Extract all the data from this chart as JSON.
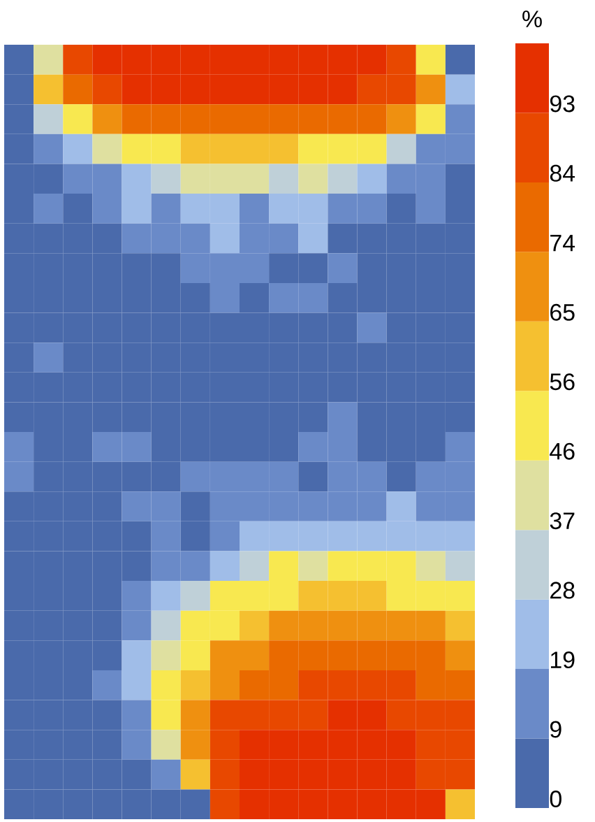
{
  "chart_data": {
    "type": "heatmap",
    "clabel": "%",
    "categories": [
      null,
      null,
      null,
      null,
      null,
      null,
      null,
      null,
      null,
      null,
      null,
      null,
      null,
      null,
      null,
      null
    ],
    "y_categories": [
      null,
      null,
      null,
      null,
      null,
      null,
      null,
      null,
      null,
      null,
      null,
      null,
      null,
      null,
      null,
      null,
      null,
      null,
      null,
      null,
      null,
      null,
      null,
      null,
      null,
      null
    ],
    "clim": [
      0,
      102.3
    ],
    "cticks": [
      {
        "value": 0,
        "label": "0"
      },
      {
        "value": 9.3,
        "label": "9"
      },
      {
        "value": 18.6,
        "label": "19"
      },
      {
        "value": 27.9,
        "label": "28"
      },
      {
        "value": 37.2,
        "label": "37"
      },
      {
        "value": 46.5,
        "label": "46"
      },
      {
        "value": 55.8,
        "label": "56"
      },
      {
        "value": 65.1,
        "label": "65"
      },
      {
        "value": 74.4,
        "label": "74"
      },
      {
        "value": 83.7,
        "label": "84"
      },
      {
        "value": 93,
        "label": "93"
      }
    ],
    "cells": [
      [
        5,
        42,
        88,
        98,
        98,
        98,
        98,
        98,
        98,
        98,
        98,
        98,
        98,
        88,
        51,
        5
      ],
      [
        5,
        60,
        79,
        88,
        98,
        98,
        98,
        98,
        98,
        98,
        98,
        98,
        88,
        88,
        70,
        23
      ],
      [
        5,
        33,
        51,
        70,
        79,
        79,
        79,
        79,
        79,
        79,
        79,
        79,
        79,
        70,
        51,
        14
      ],
      [
        5,
        14,
        23,
        42,
        51,
        51,
        60,
        60,
        60,
        60,
        51,
        51,
        51,
        33,
        14,
        14
      ],
      [
        5,
        5,
        14,
        14,
        23,
        33,
        42,
        42,
        42,
        33,
        42,
        33,
        23,
        14,
        14,
        5
      ],
      [
        5,
        14,
        5,
        14,
        23,
        14,
        23,
        23,
        14,
        23,
        23,
        14,
        14,
        5,
        14,
        5
      ],
      [
        5,
        5,
        5,
        5,
        14,
        14,
        14,
        23,
        14,
        14,
        23,
        5,
        5,
        5,
        5,
        5
      ],
      [
        5,
        5,
        5,
        5,
        5,
        5,
        14,
        14,
        14,
        5,
        5,
        14,
        5,
        5,
        5,
        5
      ],
      [
        5,
        5,
        5,
        5,
        5,
        5,
        5,
        14,
        5,
        14,
        14,
        5,
        5,
        5,
        5,
        5
      ],
      [
        5,
        5,
        5,
        5,
        5,
        5,
        5,
        5,
        5,
        5,
        5,
        5,
        14,
        5,
        5,
        5
      ],
      [
        5,
        14,
        5,
        5,
        5,
        5,
        5,
        5,
        5,
        5,
        5,
        5,
        5,
        5,
        5,
        5
      ],
      [
        5,
        5,
        5,
        5,
        5,
        5,
        5,
        5,
        5,
        5,
        5,
        5,
        5,
        5,
        5,
        5
      ],
      [
        5,
        5,
        5,
        5,
        5,
        5,
        5,
        5,
        5,
        5,
        5,
        14,
        5,
        5,
        5,
        5
      ],
      [
        14,
        5,
        5,
        14,
        14,
        5,
        5,
        5,
        5,
        5,
        14,
        14,
        5,
        5,
        5,
        14
      ],
      [
        14,
        5,
        5,
        5,
        5,
        5,
        14,
        14,
        14,
        14,
        5,
        14,
        14,
        5,
        14,
        14
      ],
      [
        5,
        5,
        5,
        5,
        14,
        14,
        5,
        14,
        14,
        14,
        14,
        14,
        14,
        23,
        14,
        14
      ],
      [
        5,
        5,
        5,
        5,
        5,
        14,
        5,
        14,
        23,
        23,
        23,
        23,
        23,
        23,
        23,
        23
      ],
      [
        5,
        5,
        5,
        5,
        5,
        14,
        14,
        23,
        33,
        51,
        42,
        51,
        51,
        51,
        42,
        33
      ],
      [
        5,
        5,
        5,
        5,
        14,
        23,
        33,
        51,
        51,
        51,
        60,
        60,
        60,
        51,
        51,
        51
      ],
      [
        5,
        5,
        5,
        5,
        14,
        33,
        51,
        51,
        60,
        70,
        70,
        70,
        70,
        70,
        70,
        60
      ],
      [
        5,
        5,
        5,
        5,
        23,
        42,
        51,
        70,
        70,
        79,
        79,
        79,
        79,
        79,
        79,
        70
      ],
      [
        5,
        5,
        5,
        14,
        23,
        51,
        60,
        70,
        79,
        79,
        88,
        88,
        88,
        88,
        79,
        79
      ],
      [
        5,
        5,
        5,
        5,
        14,
        51,
        70,
        88,
        88,
        88,
        88,
        98,
        98,
        88,
        88,
        88
      ],
      [
        5,
        5,
        5,
        5,
        14,
        42,
        70,
        88,
        98,
        98,
        98,
        98,
        98,
        98,
        88,
        88
      ],
      [
        5,
        5,
        5,
        5,
        5,
        14,
        60,
        88,
        98,
        98,
        98,
        98,
        98,
        98,
        88,
        88
      ],
      [
        5,
        5,
        5,
        5,
        5,
        5,
        5,
        88,
        98,
        98,
        98,
        98,
        98,
        98,
        98,
        60
      ]
    ]
  }
}
